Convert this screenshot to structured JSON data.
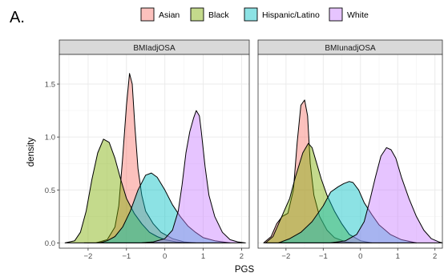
{
  "chart_data": {
    "type": "area",
    "panel_label": "A.",
    "xlabel": "PGS",
    "ylabel": "density",
    "xlim": [
      -2.75,
      2.2
    ],
    "ylim": [
      -0.05,
      1.78
    ],
    "x_ticks": [
      -2,
      -1,
      0,
      1,
      2
    ],
    "y_ticks": [
      0.0,
      0.5,
      1.0,
      1.5
    ],
    "grid": true,
    "legend_position": "top",
    "legend": [
      {
        "name": "Asian",
        "color": "#F8766D"
      },
      {
        "name": "Black",
        "color": "#7CAE00"
      },
      {
        "name": "Hispanic/Latino",
        "color": "#00BFC4"
      },
      {
        "name": "White",
        "color": "#C77CFF"
      }
    ],
    "panels": [
      {
        "title": "BMIadjOSA",
        "series": [
          {
            "name": "Asian",
            "points": [
              [
                -2.1,
                0.0
              ],
              [
                -1.8,
                0.0
              ],
              [
                -1.5,
                0.03
              ],
              [
                -1.3,
                0.15
              ],
              [
                -1.2,
                0.35
              ],
              [
                -1.1,
                0.8
              ],
              [
                -1.0,
                1.3
              ],
              [
                -0.92,
                1.6
              ],
              [
                -0.85,
                1.5
              ],
              [
                -0.78,
                1.1
              ],
              [
                -0.7,
                0.7
              ],
              [
                -0.6,
                0.45
              ],
              [
                -0.5,
                0.3
              ],
              [
                -0.3,
                0.18
              ],
              [
                -0.1,
                0.1
              ],
              [
                0.2,
                0.04
              ],
              [
                0.5,
                0.01
              ],
              [
                0.8,
                0.0
              ]
            ]
          },
          {
            "name": "Black",
            "points": [
              [
                -2.6,
                0.0
              ],
              [
                -2.35,
                0.02
              ],
              [
                -2.2,
                0.1
              ],
              [
                -2.05,
                0.3
              ],
              [
                -1.9,
                0.6
              ],
              [
                -1.75,
                0.85
              ],
              [
                -1.6,
                0.98
              ],
              [
                -1.45,
                0.95
              ],
              [
                -1.3,
                0.8
              ],
              [
                -1.15,
                0.6
              ],
              [
                -1.0,
                0.42
              ],
              [
                -0.8,
                0.28
              ],
              [
                -0.6,
                0.18
              ],
              [
                -0.4,
                0.1
              ],
              [
                -0.2,
                0.06
              ],
              [
                0.0,
                0.03
              ],
              [
                0.3,
                0.01
              ],
              [
                0.6,
                0.0
              ]
            ]
          },
          {
            "name": "Hispanic/Latino",
            "points": [
              [
                -1.7,
                0.0
              ],
              [
                -1.5,
                0.02
              ],
              [
                -1.3,
                0.06
              ],
              [
                -1.1,
                0.15
              ],
              [
                -0.9,
                0.3
              ],
              [
                -0.7,
                0.5
              ],
              [
                -0.5,
                0.64
              ],
              [
                -0.35,
                0.66
              ],
              [
                -0.2,
                0.62
              ],
              [
                0.0,
                0.5
              ],
              [
                0.2,
                0.36
              ],
              [
                0.4,
                0.25
              ],
              [
                0.6,
                0.16
              ],
              [
                0.8,
                0.1
              ],
              [
                1.0,
                0.05
              ],
              [
                1.3,
                0.02
              ],
              [
                1.7,
                0.0
              ]
            ]
          },
          {
            "name": "White",
            "points": [
              [
                -0.6,
                0.0
              ],
              [
                -0.3,
                0.01
              ],
              [
                0.0,
                0.04
              ],
              [
                0.2,
                0.12
              ],
              [
                0.35,
                0.3
              ],
              [
                0.45,
                0.55
              ],
              [
                0.55,
                0.85
              ],
              [
                0.65,
                1.05
              ],
              [
                0.75,
                1.18
              ],
              [
                0.82,
                1.25
              ],
              [
                0.9,
                1.2
              ],
              [
                0.95,
                1.05
              ],
              [
                1.05,
                0.72
              ],
              [
                1.15,
                0.45
              ],
              [
                1.3,
                0.25
              ],
              [
                1.5,
                0.1
              ],
              [
                1.7,
                0.03
              ],
              [
                1.9,
                0.01
              ],
              [
                2.1,
                0.0
              ]
            ]
          }
        ]
      },
      {
        "title": "BMIunadjOSA",
        "series": [
          {
            "name": "Asian",
            "points": [
              [
                -2.6,
                0.0
              ],
              [
                -2.4,
                0.06
              ],
              [
                -2.25,
                0.18
              ],
              [
                -2.1,
                0.25
              ],
              [
                -1.95,
                0.28
              ],
              [
                -1.8,
                0.5
              ],
              [
                -1.7,
                0.95
              ],
              [
                -1.6,
                1.3
              ],
              [
                -1.5,
                1.35
              ],
              [
                -1.42,
                1.2
              ],
              [
                -1.35,
                0.75
              ],
              [
                -1.25,
                0.45
              ],
              [
                -1.1,
                0.25
              ],
              [
                -0.9,
                0.12
              ],
              [
                -0.7,
                0.05
              ],
              [
                -0.4,
                0.01
              ],
              [
                -0.1,
                0.0
              ]
            ]
          },
          {
            "name": "Black",
            "points": [
              [
                -2.55,
                0.0
              ],
              [
                -2.35,
                0.06
              ],
              [
                -2.2,
                0.18
              ],
              [
                -2.05,
                0.3
              ],
              [
                -1.9,
                0.42
              ],
              [
                -1.75,
                0.62
              ],
              [
                -1.55,
                0.85
              ],
              [
                -1.4,
                0.94
              ],
              [
                -1.3,
                0.9
              ],
              [
                -1.2,
                0.78
              ],
              [
                -1.05,
                0.6
              ],
              [
                -0.9,
                0.45
              ],
              [
                -0.7,
                0.3
              ],
              [
                -0.5,
                0.18
              ],
              [
                -0.3,
                0.08
              ],
              [
                0.0,
                0.02
              ],
              [
                0.3,
                0.0
              ]
            ]
          },
          {
            "name": "Hispanic/Latino",
            "points": [
              [
                -2.2,
                0.0
              ],
              [
                -1.9,
                0.04
              ],
              [
                -1.6,
                0.1
              ],
              [
                -1.3,
                0.2
              ],
              [
                -1.0,
                0.35
              ],
              [
                -0.8,
                0.48
              ],
              [
                -0.6,
                0.53
              ],
              [
                -0.45,
                0.56
              ],
              [
                -0.3,
                0.58
              ],
              [
                -0.2,
                0.57
              ],
              [
                -0.05,
                0.5
              ],
              [
                0.1,
                0.38
              ],
              [
                0.3,
                0.27
              ],
              [
                0.5,
                0.17
              ],
              [
                0.8,
                0.08
              ],
              [
                1.1,
                0.03
              ],
              [
                1.5,
                0.0
              ]
            ]
          },
          {
            "name": "White",
            "points": [
              [
                -0.8,
                0.0
              ],
              [
                -0.4,
                0.02
              ],
              [
                -0.1,
                0.08
              ],
              [
                0.1,
                0.2
              ],
              [
                0.25,
                0.4
              ],
              [
                0.4,
                0.62
              ],
              [
                0.55,
                0.82
              ],
              [
                0.7,
                0.9
              ],
              [
                0.82,
                0.88
              ],
              [
                0.95,
                0.8
              ],
              [
                1.1,
                0.62
              ],
              [
                1.3,
                0.42
              ],
              [
                1.5,
                0.25
              ],
              [
                1.7,
                0.12
              ],
              [
                1.9,
                0.04
              ],
              [
                2.1,
                0.01
              ],
              [
                2.2,
                0.0
              ]
            ]
          }
        ]
      }
    ]
  }
}
